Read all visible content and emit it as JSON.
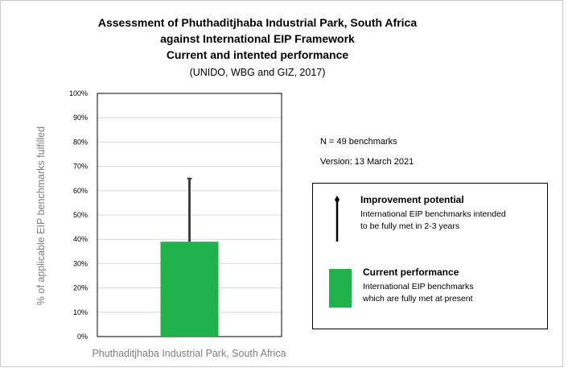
{
  "chart_data": {
    "type": "bar",
    "title_lines": [
      "Assessment of Phuthaditjhaba Industrial Park, South Africa",
      "against International EIP Framework",
      "Current and intented performance"
    ],
    "subtitle": "(UNIDO, WBG and GIZ, 2017)",
    "categories": [
      "Phuthaditjhaba Industrial Park, South Africa"
    ],
    "series": [
      {
        "name": "Current performance",
        "values": [
          0.39
        ],
        "color": "#22b24c"
      }
    ],
    "improvement_potential": {
      "from": 0.39,
      "to": 0.65,
      "color": "#404040"
    },
    "ylabel": "% of applicable EIP benchmarks fulfilled",
    "ylim": [
      0,
      1
    ],
    "yticks": [
      "0%",
      "10%",
      "20%",
      "30%",
      "40%",
      "50%",
      "60%",
      "70%",
      "80%",
      "90%",
      "100%"
    ],
    "grid": true
  },
  "notes": {
    "n": "N = 49 benchmarks",
    "version": "Version: 13 March 2021"
  },
  "legend": {
    "improvement": {
      "title": "Improvement potential",
      "line1": "International EIP benchmarks intended",
      "line2": "to be fully met in 2-3 years"
    },
    "current": {
      "title": "Current performance",
      "line1": "International EIP benchmarks",
      "line2": "which are fully met at present"
    }
  }
}
